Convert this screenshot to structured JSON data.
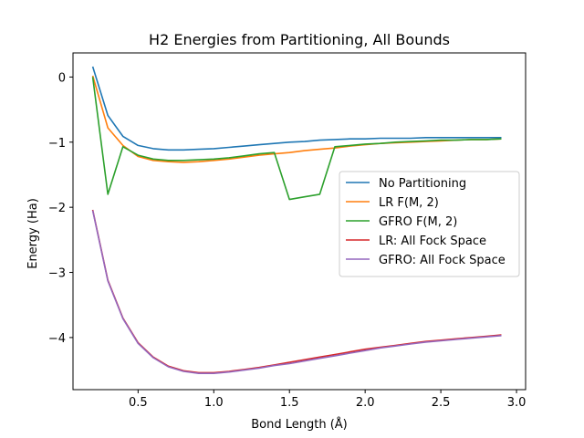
{
  "chart_data": {
    "type": "line",
    "title": "H2 Energies from Partitioning, All Bounds",
    "xlabel": "Bond Length (Å)",
    "ylabel": "Energy (Ha)",
    "xlim": [
      0.07,
      3.06
    ],
    "ylim": [
      -4.8,
      0.37
    ],
    "xticks": [
      0.5,
      1.0,
      1.5,
      2.0,
      2.5,
      3.0
    ],
    "xtick_labels": [
      "0.5",
      "1.0",
      "1.5",
      "2.0",
      "2.5",
      "3.0"
    ],
    "yticks": [
      0,
      -1,
      -2,
      -3,
      -4
    ],
    "ytick_labels": [
      "0",
      "−1",
      "−2",
      "−3",
      "−4"
    ],
    "grid": false,
    "legend_position": "center-right",
    "x": [
      0.2,
      0.3,
      0.4,
      0.5,
      0.6,
      0.7,
      0.8,
      0.9,
      1.0,
      1.1,
      1.2,
      1.3,
      1.4,
      1.5,
      1.6,
      1.7,
      1.8,
      1.9,
      2.0,
      2.1,
      2.2,
      2.3,
      2.4,
      2.5,
      2.6,
      2.7,
      2.8,
      2.9
    ],
    "series": [
      {
        "name": "No Partitioning",
        "color": "#1f77b4",
        "values": [
          0.16,
          -0.59,
          -0.91,
          -1.05,
          -1.1,
          -1.12,
          -1.12,
          -1.11,
          -1.1,
          -1.08,
          -1.06,
          -1.04,
          -1.02,
          -1.0,
          -0.99,
          -0.97,
          -0.96,
          -0.95,
          -0.95,
          -0.94,
          -0.94,
          -0.94,
          -0.93,
          -0.93,
          -0.93,
          -0.93,
          -0.93,
          -0.93
        ]
      },
      {
        "name": "LR F(M, 2)",
        "color": "#ff7f0e",
        "values": [
          0.02,
          -0.78,
          -1.05,
          -1.22,
          -1.28,
          -1.3,
          -1.31,
          -1.3,
          -1.28,
          -1.26,
          -1.23,
          -1.2,
          -1.18,
          -1.16,
          -1.13,
          -1.11,
          -1.09,
          -1.06,
          -1.04,
          -1.02,
          -1.01,
          -1.0,
          -0.99,
          -0.98,
          -0.97,
          -0.96,
          -0.96,
          -0.95
        ]
      },
      {
        "name": "GFRO F(M, 2)",
        "color": "#2ca02c",
        "values": [
          0.0,
          -1.8,
          -1.07,
          -1.2,
          -1.26,
          -1.28,
          -1.28,
          -1.27,
          -1.26,
          -1.24,
          -1.21,
          -1.18,
          -1.16,
          -1.88,
          -1.84,
          -1.8,
          -1.07,
          -1.05,
          -1.03,
          -1.02,
          -1.0,
          -0.99,
          -0.98,
          -0.97,
          -0.97,
          -0.96,
          -0.96,
          -0.95
        ]
      },
      {
        "name": "LR: All Fock Space",
        "color": "#d62728",
        "values": [
          -2.04,
          -3.12,
          -3.7,
          -4.08,
          -4.3,
          -4.44,
          -4.51,
          -4.54,
          -4.54,
          -4.52,
          -4.49,
          -4.46,
          -4.42,
          -4.38,
          -4.34,
          -4.3,
          -4.26,
          -4.22,
          -4.18,
          -4.15,
          -4.12,
          -4.09,
          -4.06,
          -4.04,
          -4.02,
          -4.0,
          -3.98,
          -3.96
        ]
      },
      {
        "name": "GFRO: All Fock Space",
        "color": "#9467bd",
        "values": [
          -2.05,
          -3.13,
          -3.71,
          -4.09,
          -4.31,
          -4.45,
          -4.52,
          -4.55,
          -4.55,
          -4.53,
          -4.5,
          -4.47,
          -4.43,
          -4.4,
          -4.36,
          -4.32,
          -4.28,
          -4.24,
          -4.2,
          -4.16,
          -4.13,
          -4.1,
          -4.07,
          -4.05,
          -4.03,
          -4.01,
          -3.99,
          -3.97
        ]
      }
    ]
  }
}
